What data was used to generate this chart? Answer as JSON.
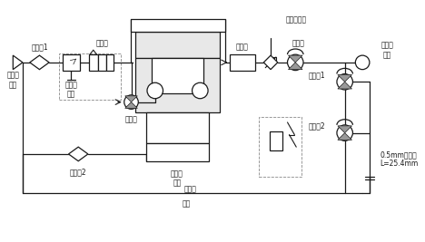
{
  "bg": "#ffffff",
  "lc": "#1a1a1a",
  "lw": 0.9,
  "labels": {
    "filter1": "过滤器1",
    "compressed_air": "压缩空\n气源",
    "solenoid_valve": "电磁阀",
    "electro_prop": "电气比\n例阀",
    "shutoff_valve": "截止阀",
    "filter2": "过滤器2",
    "pneumatic_pump": "气动增\n压泵",
    "safety_valve": "安全阀",
    "oil_tank": "油箱",
    "pressure_sensor": "压力传感器",
    "muffler": "消声器",
    "pneumatic_ctrl": "气控阀",
    "high_pressure_oil": "高压油\n出口",
    "unload_valve1": "卸荷阀1",
    "unload_valve2": "卸荷阀2",
    "orifice": "0.5mm节流孔\nL=25.4mm"
  },
  "figw": 4.68,
  "figh": 2.67,
  "dpi": 100
}
